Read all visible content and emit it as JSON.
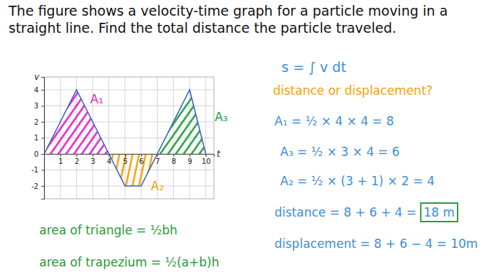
{
  "chart_data": {
    "type": "line",
    "title": "The figure shows a velocity-time graph for a particle moving in a straight line. Find the total distance the particle traveled.",
    "x_label": "t",
    "y_label": "v",
    "x": [
      0,
      2,
      4,
      5,
      6,
      7,
      9,
      10
    ],
    "values": [
      0,
      4,
      0,
      -2,
      -2,
      0,
      4,
      0
    ],
    "color": "#3b64c8",
    "xlim": [
      0,
      10.5
    ],
    "ylim": [
      -2.8,
      4.8
    ],
    "xticks": [
      1,
      2,
      3,
      4,
      5,
      6,
      7,
      8,
      9,
      10
    ],
    "yticks": [
      -2,
      -1,
      0,
      1,
      2,
      3,
      4
    ],
    "grid": true,
    "regions": [
      {
        "label": "A₁",
        "color": "#e224c8",
        "x_range": [
          0,
          4
        ]
      },
      {
        "label": "A₂",
        "color": "#f0a30a",
        "x_range": [
          4,
          7
        ]
      },
      {
        "label": "A₃",
        "color": "#22a03c",
        "x_range": [
          7,
          10
        ]
      }
    ],
    "annotations": [
      {
        "text": "s = ∫ v dt",
        "color": "#3d8fd9"
      },
      {
        "text": "distance or displacement?",
        "color": "#f0a30a"
      },
      {
        "text": "A₁ = ½ × 4 × 4 = 8",
        "color": "#3d8fd9"
      },
      {
        "text": "A₃ = ½ × 3 × 4 = 6",
        "color": "#3d8fd9"
      },
      {
        "text": "A₂ = ½ × (3 + 1) × 2 = 4",
        "color": "#3d8fd9"
      },
      {
        "text": "distance = 8 + 6 + 4 =",
        "color": "#3d8fd9"
      },
      {
        "text": "18 m",
        "color": "#3d8fd9"
      },
      {
        "text": "displacement = 8 + 6 − 4 = 10m",
        "color": "#3d8fd9"
      },
      {
        "text": "area of triangle = ½bh",
        "color": "#2a9a3a"
      },
      {
        "text": "area of trapezium = ½(a+b)h",
        "color": "#2a9a3a"
      }
    ]
  }
}
